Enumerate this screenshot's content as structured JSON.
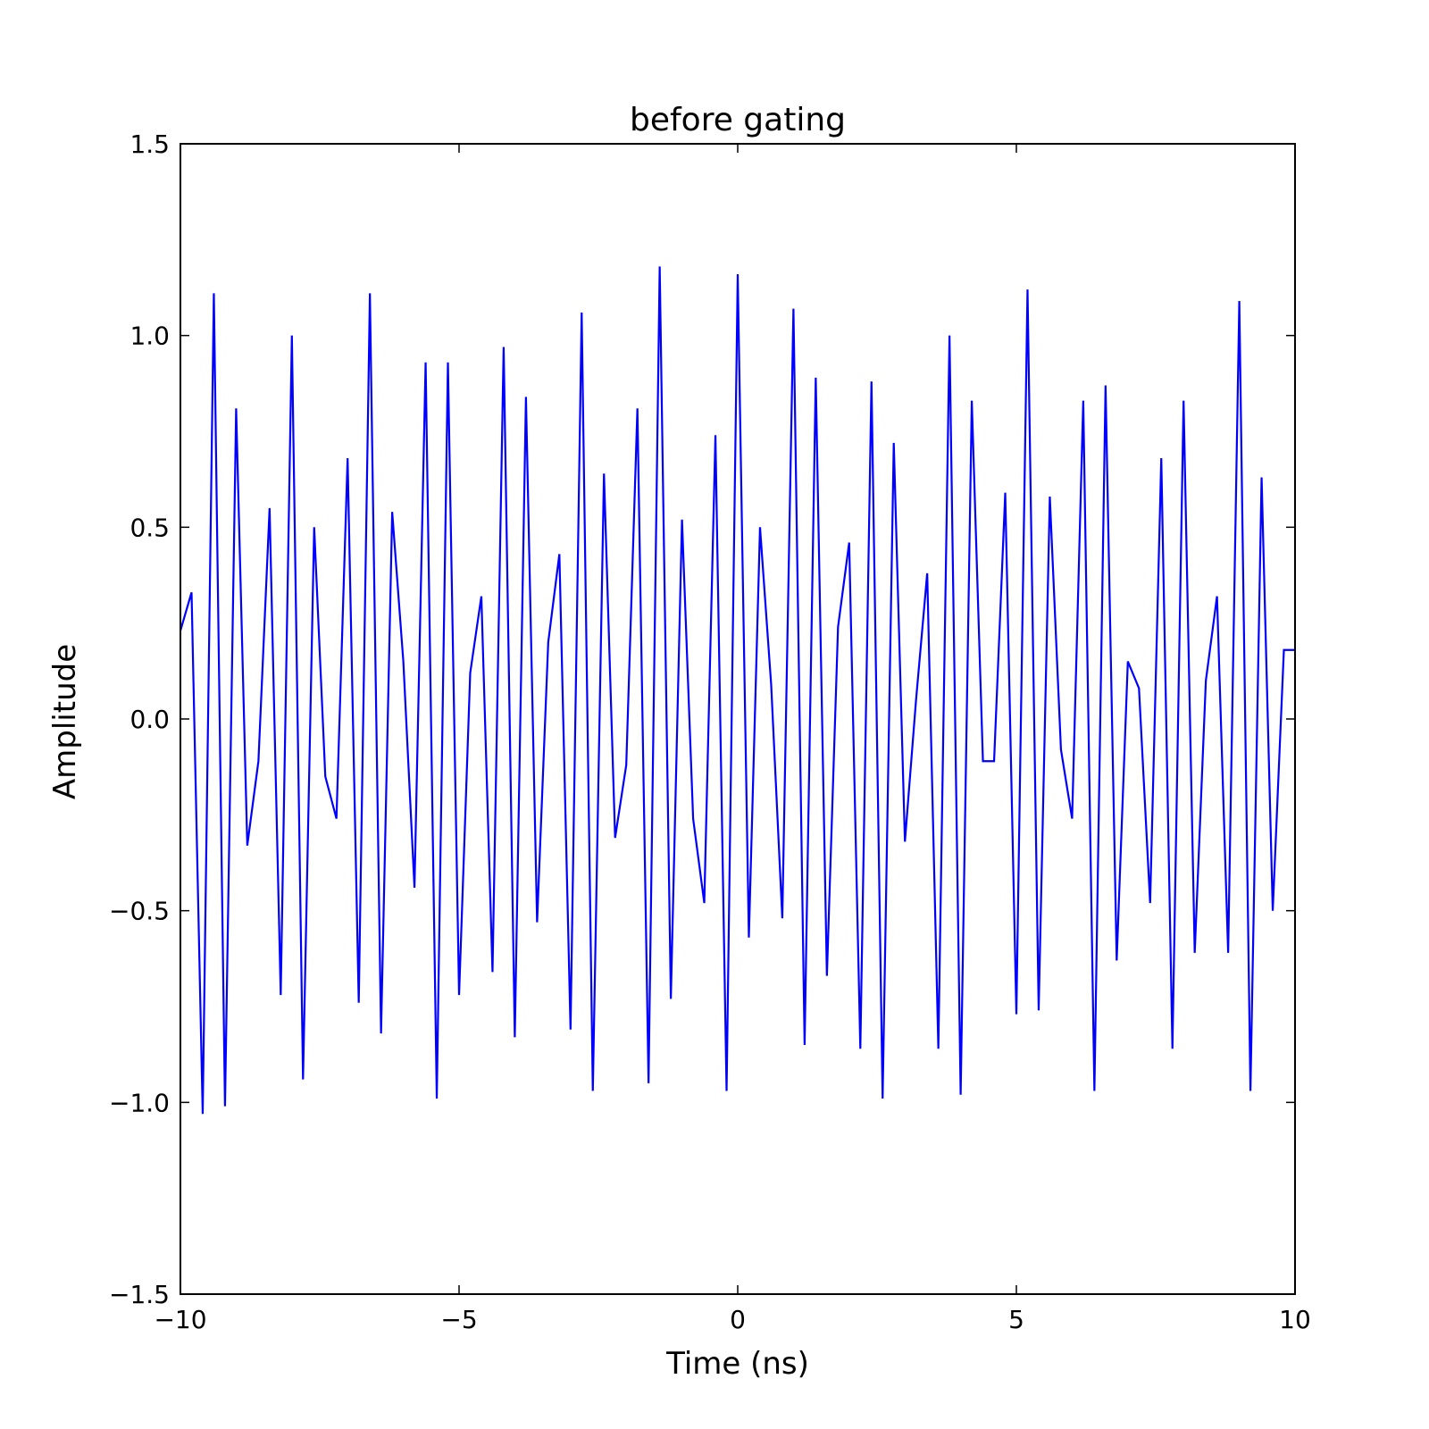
{
  "chart_data": {
    "type": "line",
    "title": "before gating",
    "xlabel": "Time (ns)",
    "ylabel": "Amplitude",
    "xlim": [
      -10,
      10
    ],
    "ylim": [
      -1.5,
      1.5
    ],
    "xticks": [
      -10,
      -5,
      0,
      5,
      10
    ],
    "xtick_labels": [
      "−10",
      "−5",
      "0",
      "5",
      "10"
    ],
    "yticks": [
      -1.5,
      -1.0,
      -0.5,
      0.0,
      0.5,
      1.0,
      1.5
    ],
    "ytick_labels": [
      "−1.5",
      "−1.0",
      "−0.5",
      "0.0",
      "0.5",
      "1.0",
      "1.5"
    ],
    "grid": false,
    "series": [
      {
        "color": "#0000ff",
        "x": [
          -10.0,
          -9.8,
          -9.6,
          -9.4,
          -9.2,
          -9.0,
          -8.8,
          -8.6,
          -8.4,
          -8.2,
          -8.0,
          -7.8,
          -7.6,
          -7.4,
          -7.2,
          -7.0,
          -6.8,
          -6.6,
          -6.4,
          -6.2,
          -6.0,
          -5.8,
          -5.6,
          -5.4,
          -5.2,
          -5.0,
          -4.8,
          -4.6,
          -4.4,
          -4.2,
          -4.0,
          -3.8,
          -3.6,
          -3.4,
          -3.2,
          -3.0,
          -2.8,
          -2.6,
          -2.4,
          -2.2,
          -2.0,
          -1.8,
          -1.6,
          -1.4,
          -1.2,
          -1.0,
          -0.8,
          -0.6,
          -0.4,
          -0.2,
          0.0,
          0.2,
          0.4,
          0.6,
          0.8,
          1.0,
          1.2,
          1.4,
          1.6,
          1.8,
          2.0,
          2.2,
          2.4,
          2.6,
          2.8,
          3.0,
          3.2,
          3.4,
          3.6,
          3.8,
          4.0,
          4.2,
          4.4,
          4.6,
          4.8,
          5.0,
          5.2,
          5.4,
          5.6,
          5.8,
          6.0,
          6.2,
          6.4,
          6.6,
          6.8,
          7.0,
          7.2,
          7.4,
          7.6,
          7.8,
          8.0,
          8.2,
          8.4,
          8.6,
          8.8,
          9.0,
          9.2,
          9.4,
          9.6,
          9.8,
          10.0
        ],
        "y": [
          0.23,
          0.33,
          -1.03,
          1.11,
          -1.01,
          0.81,
          -0.33,
          -0.11,
          0.55,
          -0.72,
          1.0,
          -0.94,
          0.5,
          -0.15,
          -0.26,
          0.68,
          -0.74,
          1.11,
          -0.82,
          0.54,
          0.15,
          -0.44,
          0.93,
          -0.99,
          0.93,
          -0.72,
          0.12,
          0.32,
          -0.66,
          0.97,
          -0.83,
          0.84,
          -0.53,
          0.2,
          0.43,
          -0.81,
          1.06,
          -0.97,
          0.64,
          -0.31,
          -0.12,
          0.81,
          -0.95,
          1.18,
          -0.73,
          0.52,
          -0.26,
          -0.48,
          0.74,
          -0.97,
          1.16,
          -0.57,
          0.5,
          0.09,
          -0.52,
          1.07,
          -0.85,
          0.89,
          -0.67,
          0.24,
          0.46,
          -0.86,
          0.88,
          -0.99,
          0.72,
          -0.32,
          0.05,
          0.38,
          -0.86,
          1.0,
          -0.98,
          0.83,
          -0.11,
          -0.11,
          0.59,
          -0.77,
          1.12,
          -0.76,
          0.58,
          -0.08,
          -0.26,
          0.83,
          -0.97,
          0.87,
          -0.63,
          0.15,
          0.08,
          -0.48,
          0.68,
          -0.86,
          0.83,
          -0.61,
          0.1,
          0.32,
          -0.61,
          1.09,
          -0.97,
          0.63,
          -0.5,
          0.18,
          0.18
        ]
      }
    ]
  }
}
